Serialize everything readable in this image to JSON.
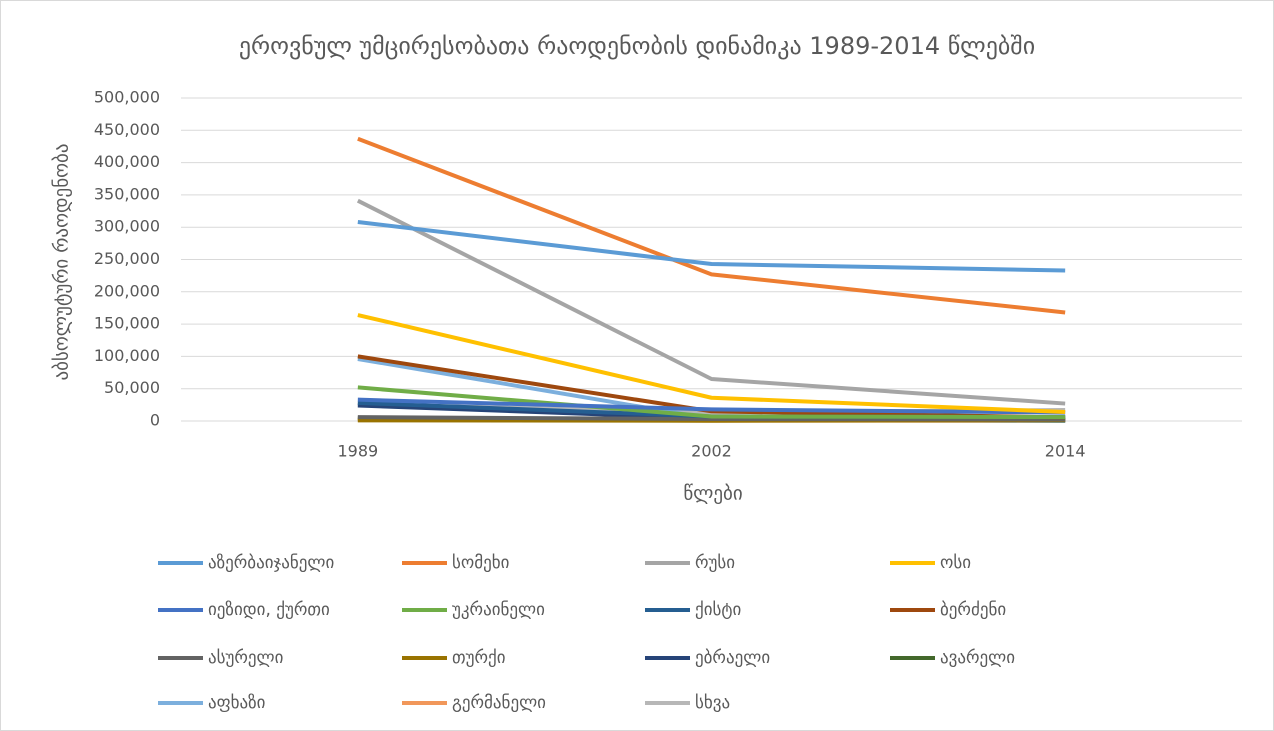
{
  "chart_data": {
    "type": "line",
    "title": "ეროვნულ უმცირესობათა რაოდენობის დინამიკა 1989-2014 წლებში",
    "x_label": "წლები",
    "y_label": "აბსოლუტური რაოდენობა",
    "categories": [
      "1989",
      "2002",
      "2014"
    ],
    "ylim": [
      0,
      500000
    ],
    "yticks": [
      0,
      {
        "value": 50000,
        "label": "50,000"
      },
      {
        "value": 100000,
        "label": "100,000"
      },
      {
        "value": 150000,
        "label": "150,000"
      },
      {
        "value": 200000,
        "label": "200,000"
      },
      {
        "value": 250000,
        "label": "250,000"
      },
      {
        "value": 300000,
        "label": "300,000"
      },
      {
        "value": 350000,
        "label": "350,000"
      },
      {
        "value": 400000,
        "label": "400,000"
      },
      {
        "value": 450000,
        "label": "450,000"
      },
      {
        "value": 500000,
        "label": "500,000"
      }
    ],
    "grid": true,
    "legend": "bottom",
    "series": [
      {
        "name": "აზერბაიჯანელი",
        "color": "#5b9bd5",
        "values": [
          308000,
          243000,
          233000
        ]
      },
      {
        "name": "სომეხი",
        "color": "#ed7d31",
        "values": [
          437000,
          227000,
          168000
        ]
      },
      {
        "name": "რუსი",
        "color": "#a5a5a5",
        "values": [
          341000,
          65000,
          27000
        ]
      },
      {
        "name": "ოსი",
        "color": "#ffc000",
        "values": [
          164000,
          36000,
          14000
        ]
      },
      {
        "name": "იეზიდი, ქურთი",
        "color": "#4472c4",
        "values": [
          33000,
          18000,
          13000
        ]
      },
      {
        "name": "უკრაინელი",
        "color": "#70ad47",
        "values": [
          52000,
          7000,
          6000
        ]
      },
      {
        "name": "ქისტი",
        "color": "#255e91",
        "values": [
          28000,
          7000,
          6000
        ]
      },
      {
        "name": "ბერძენი",
        "color": "#9e480e",
        "values": [
          100000,
          15000,
          5500
        ]
      },
      {
        "name": "ასურელი",
        "color": "#636363",
        "values": [
          6000,
          3000,
          2400
        ]
      },
      {
        "name": "თურქი",
        "color": "#997300",
        "values": [
          1000,
          400,
          1200
        ]
      },
      {
        "name": "ებრაელი",
        "color": "#264478",
        "values": [
          24000,
          4000,
          2000
        ]
      },
      {
        "name": "ავარელი",
        "color": "#43682b",
        "values": [
          4000,
          1500,
          1000
        ]
      },
      {
        "name": "აფხაზი",
        "color": "#7cafdd",
        "values": [
          96000,
          3500,
          0
        ]
      },
      {
        "name": "გერმანელი",
        "color": "#f1975a",
        "values": [
          2000,
          600,
          400
        ]
      },
      {
        "name": "სხვა",
        "color": "#b7b7b7",
        "values": [
          26000,
          13000,
          17000
        ]
      }
    ]
  }
}
